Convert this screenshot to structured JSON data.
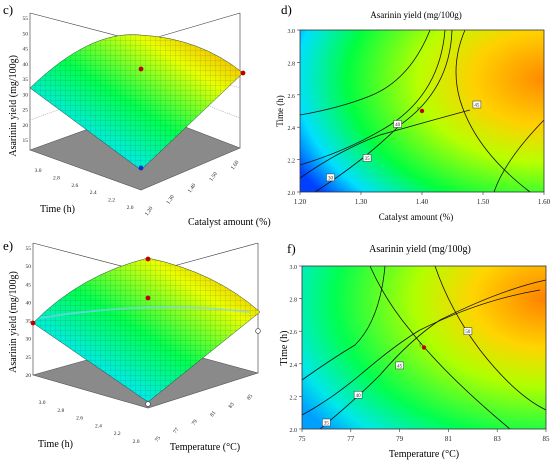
{
  "panels": {
    "c": {
      "label": "c)",
      "ylabel": "Asarinin yield (mg/100g)",
      "xlabel": "Catalyst amount (%)",
      "zlabel": "Time (h)"
    },
    "d": {
      "label": "d)",
      "title": "Asarinin yield (mg/100g)",
      "xlabel": "Catalyst amount (%)",
      "ylabel": "Time (h)"
    },
    "e": {
      "label": "e)",
      "ylabel": "Asarinin yield (mg/100g)",
      "xlabel": "Temperature (°C)",
      "zlabel": "Time (h)"
    },
    "f": {
      "label": "f)",
      "title": "Asarinin yield (mg/100g)",
      "xlabel": "Temperature (°C)",
      "ylabel": "Time (h)"
    }
  },
  "chart_data": [
    {
      "panel": "c",
      "type": "surface",
      "x": {
        "label": "Catalyst amount (%)",
        "range": [
          1.2,
          1.6
        ],
        "ticks": [
          "1.20",
          "1.30",
          "1.40",
          "1.50",
          "1.60"
        ]
      },
      "y": {
        "label": "Time (h)",
        "range": [
          2.0,
          3.0
        ],
        "ticks": [
          "2.0",
          "2.2",
          "2.4",
          "2.6",
          "2.8",
          "3.0"
        ]
      },
      "z": {
        "label": "Asarinin yield (mg/100g)",
        "range": [
          15,
          55
        ],
        "ticks": [
          "15",
          "20",
          "25",
          "30",
          "35",
          "40",
          "45",
          "50",
          "55"
        ]
      },
      "colors": [
        "#0000ff",
        "#00ffff",
        "#00ff00",
        "#ffff00",
        "#ff8c00"
      ]
    },
    {
      "panel": "d",
      "type": "contour",
      "title": "Asarinin yield (mg/100g)",
      "x": {
        "label": "Catalyst amount (%)",
        "range": [
          1.2,
          1.6
        ],
        "ticks": [
          "1.20",
          "1.30",
          "1.40",
          "1.50",
          "1.60"
        ]
      },
      "y": {
        "label": "Time (h)",
        "range": [
          2.0,
          3.0
        ],
        "ticks": [
          "2.0",
          "2.2",
          "2.4",
          "2.6",
          "2.8",
          "3.0"
        ]
      },
      "contour_labels": [
        {
          "text": "30",
          "x": 1.25,
          "y": 2.09
        },
        {
          "text": "35",
          "x": 1.31,
          "y": 2.21
        },
        {
          "text": "40",
          "x": 1.36,
          "y": 2.42
        },
        {
          "text": "45",
          "x": 1.49,
          "y": 2.54
        }
      ],
      "design_points": [
        {
          "x": 1.4,
          "y": 2.5
        }
      ]
    },
    {
      "panel": "e",
      "type": "surface",
      "x": {
        "label": "Temperature (°C)",
        "range": [
          75,
          85
        ],
        "ticks": [
          "75",
          "77",
          "79",
          "81",
          "83",
          "85"
        ]
      },
      "y": {
        "label": "Time (h)",
        "range": [
          2.0,
          3.0
        ],
        "ticks": [
          "2.0",
          "2.2",
          "2.4",
          "2.6",
          "2.8",
          "3.0"
        ]
      },
      "z": {
        "label": "Asarinin yield (mg/100g)",
        "range": [
          20,
          55
        ],
        "ticks": [
          "20",
          "25",
          "30",
          "35",
          "40",
          "45",
          "50",
          "55"
        ]
      },
      "colors": [
        "#0000ff",
        "#00ffff",
        "#00ff00",
        "#ffff00",
        "#ff8c00"
      ]
    },
    {
      "panel": "f",
      "type": "contour",
      "title": "Asarinin yield (mg/100g)",
      "x": {
        "label": "Temperature (°C)",
        "range": [
          75,
          85
        ],
        "ticks": [
          "75",
          "77",
          "79",
          "81",
          "83",
          "85"
        ]
      },
      "y": {
        "label": "Time (h)",
        "range": [
          2.0,
          3.0
        ],
        "ticks": [
          "2.0",
          "2.2",
          "2.4",
          "2.6",
          "2.8",
          "3.0"
        ]
      },
      "contour_labels": [
        {
          "text": "35",
          "x": 76.0,
          "y": 2.04
        },
        {
          "text": "40",
          "x": 77.3,
          "y": 2.21
        },
        {
          "text": "45",
          "x": 79.0,
          "y": 2.39
        },
        {
          "text": "50",
          "x": 81.8,
          "y": 2.6
        }
      ],
      "design_points": [
        {
          "x": 80.0,
          "y": 2.5
        }
      ]
    }
  ]
}
